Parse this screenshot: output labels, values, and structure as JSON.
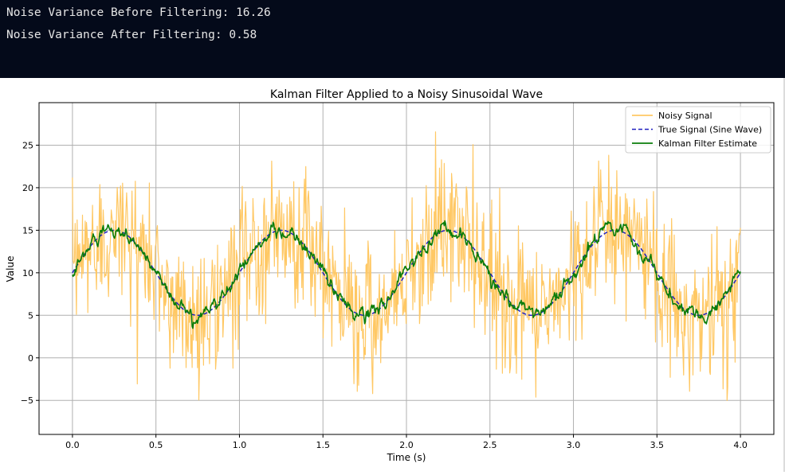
{
  "console": {
    "line1": "Noise Variance Before Filtering: 16.26",
    "line2": "Noise Variance After Filtering: 0.58"
  },
  "chart_data": {
    "type": "line",
    "title": "Kalman Filter Applied to a Noisy Sinusoidal Wave",
    "xlabel": "Time (s)",
    "ylabel": "Value",
    "xlim": [
      -0.2,
      4.2
    ],
    "ylim": [
      -9,
      30
    ],
    "xticks": [
      0.0,
      0.5,
      1.0,
      1.5,
      2.0,
      2.5,
      3.0,
      3.5,
      4.0
    ],
    "xtick_labels": [
      "0.0",
      "0.5",
      "1.0",
      "1.5",
      "2.0",
      "2.5",
      "3.0",
      "3.5",
      "4.0"
    ],
    "yticks": [
      -5,
      0,
      5,
      10,
      15,
      20,
      25
    ],
    "ytick_labels": [
      "−5",
      "0",
      "5",
      "10",
      "15",
      "20",
      "25"
    ],
    "grid": true,
    "legend_position": "top-right",
    "signal_model": {
      "x_start": 0.0,
      "x_end": 4.0,
      "offset": 10,
      "amplitude": 5,
      "frequency_hz": 1,
      "noise_variance_before": 16.26,
      "noise_variance_after": 0.58,
      "noisy_range": [
        -7.2,
        28.2
      ]
    },
    "series": [
      {
        "name": "Noisy Signal",
        "color": "#ffc864",
        "style": "solid"
      },
      {
        "name": "True Signal (Sine Wave)",
        "color": "#1f1fbf",
        "style": "dashed"
      },
      {
        "name": "Kalman Filter Estimate",
        "color": "#0a7d0a",
        "style": "solid"
      }
    ]
  }
}
